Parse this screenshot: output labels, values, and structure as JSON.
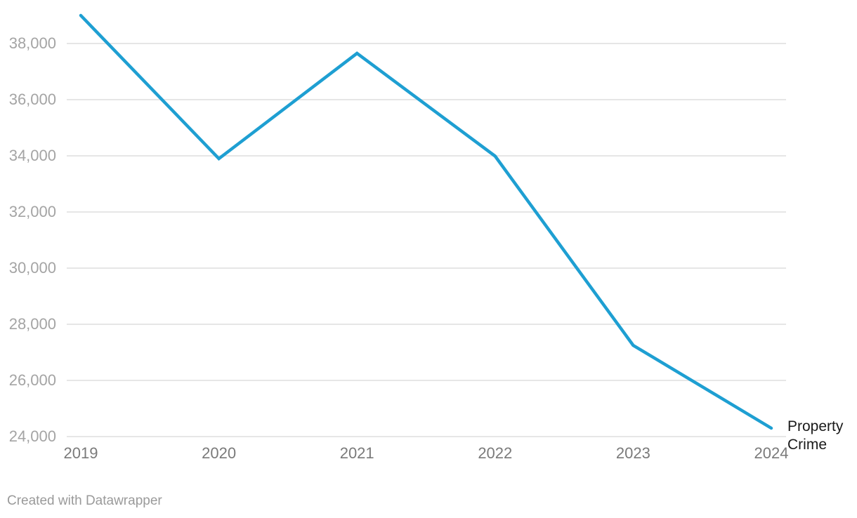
{
  "chart_data": {
    "type": "line",
    "title": "",
    "xlabel": "",
    "ylabel": "",
    "x": [
      "2019",
      "2020",
      "2021",
      "2022",
      "2023",
      "2024"
    ],
    "series": [
      {
        "name": "Property Crime",
        "values": [
          39000,
          33900,
          37650,
          33990,
          27250,
          24300
        ]
      }
    ],
    "ylim": [
      24000,
      39000
    ],
    "yticks": [
      24000,
      26000,
      28000,
      30000,
      32000,
      34000,
      36000,
      38000
    ],
    "ytick_labels": [
      "24,000",
      "26,000",
      "28,000",
      "30,000",
      "32,000",
      "34,000",
      "36,000",
      "38,000"
    ],
    "grid": true,
    "legend_position": "end-of-line",
    "line_color": "#1e9fd2"
  },
  "series_label": {
    "line1": "Property",
    "line2": "Crime"
  },
  "footer": {
    "attribution": "Created with Datawrapper"
  },
  "colors": {
    "line": "#1e9fd2",
    "gridline": "#e6e6e6",
    "y_tick_text": "#a4a4a4",
    "x_tick_text": "#7a7a7a",
    "series_label_text": "#1a1a1a",
    "attribution_text": "#9a9a9a",
    "background": "#ffffff"
  }
}
